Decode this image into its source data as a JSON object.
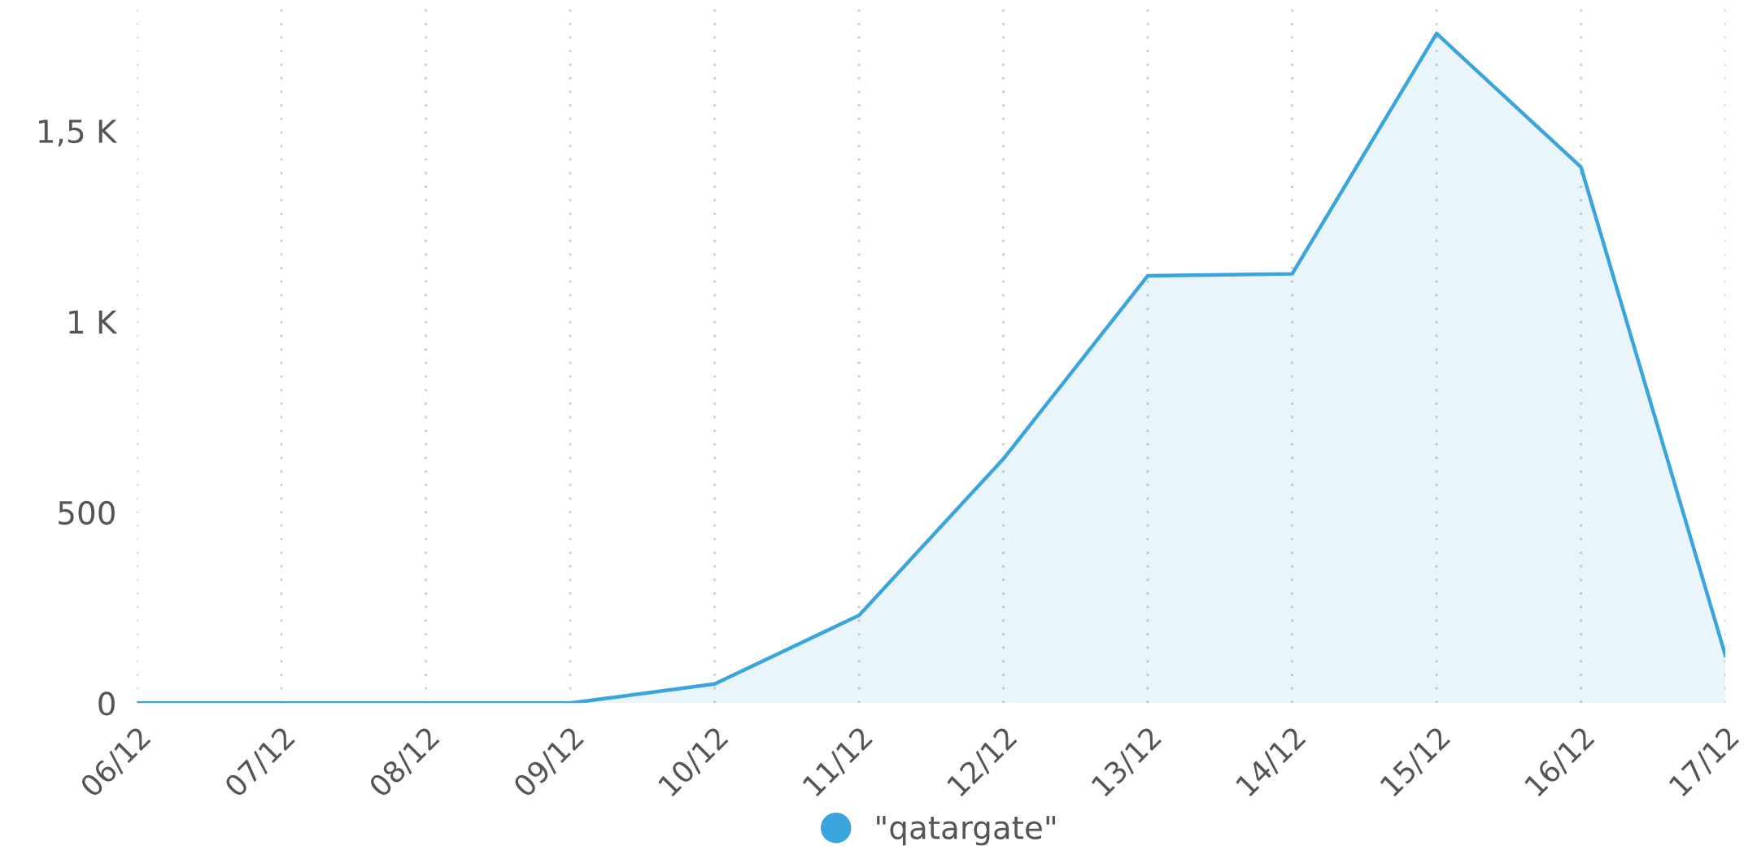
{
  "chart_data": {
    "type": "area",
    "categories": [
      "06/12",
      "07/12",
      "08/12",
      "09/12",
      "10/12",
      "11/12",
      "12/12",
      "13/12",
      "14/12",
      "15/12",
      "16/12",
      "17/12"
    ],
    "series": [
      {
        "name": "\"qatargate\"",
        "color": "#3aa4dc",
        "values": [
          0,
          0,
          0,
          0,
          50,
          230,
          640,
          1120,
          1125,
          1755,
          1405,
          125
        ]
      }
    ],
    "ylim": [
      0,
      1820
    ],
    "yticks": [
      0,
      500,
      {
        "value": 1000,
        "label": "1 K"
      },
      {
        "value": 1500,
        "label": "1,5 K"
      }
    ],
    "grid": "x",
    "legend": "bottom",
    "marker": "none",
    "line_style": "solid"
  }
}
